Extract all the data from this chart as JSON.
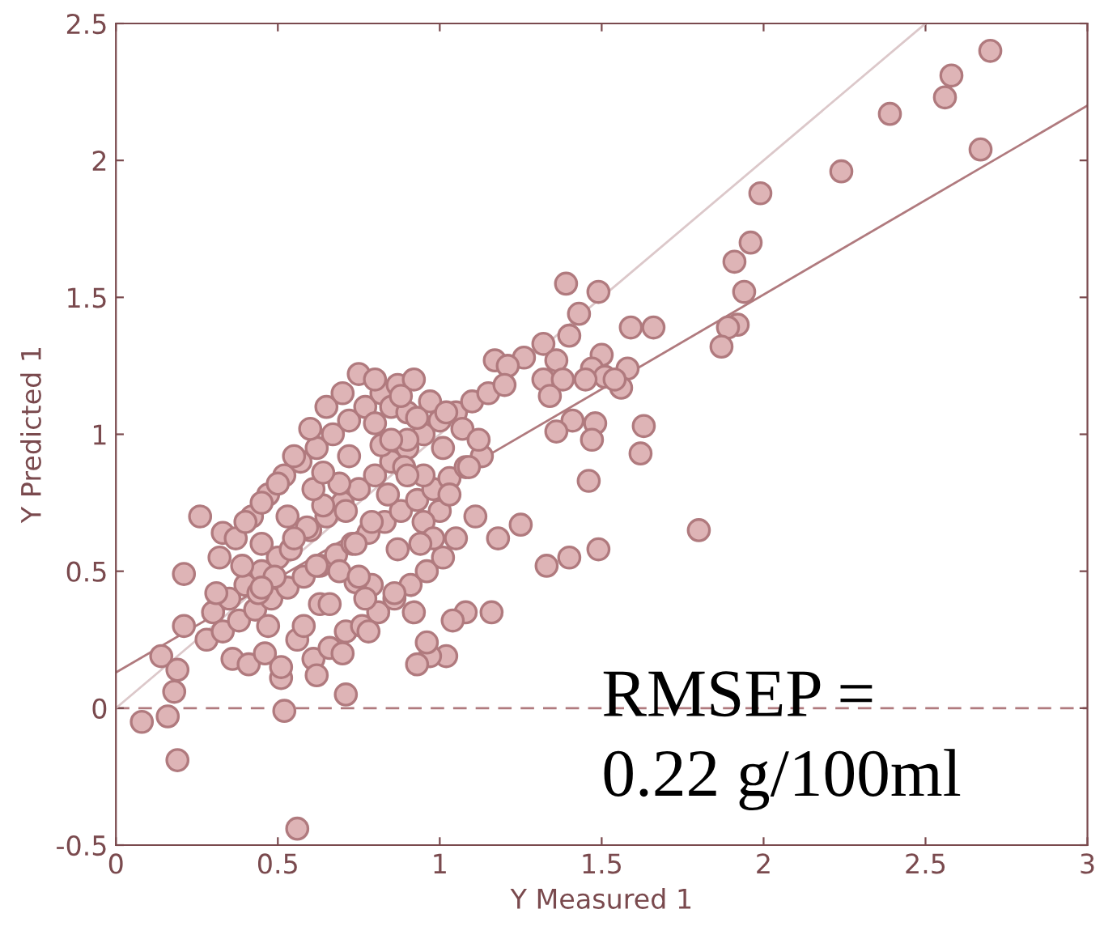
{
  "chart_data": {
    "type": "scatter",
    "xlabel": "Y Measured 1",
    "ylabel": "Y Predicted 1",
    "annotations": [
      "RMSEP =\n0.22 g/100ml"
    ],
    "xlim": [
      0,
      3
    ],
    "ylim": [
      -0.5,
      2.5
    ],
    "xticks": [
      0,
      0.5,
      1,
      1.5,
      2,
      2.5,
      3
    ],
    "yticks": [
      -0.5,
      0,
      0.5,
      1,
      1.5,
      2,
      2.5
    ],
    "grid": false,
    "marker": "circle",
    "ref_lines": [
      {
        "axis": "y",
        "value": 0,
        "color": "#b07a7e",
        "line_style": "dashed"
      }
    ],
    "series": [
      {
        "type": "line",
        "color": "#dcc8ca",
        "x": [
          0,
          2.5
        ],
        "values": [
          0,
          2.5
        ],
        "marker": "none"
      },
      {
        "type": "line",
        "color": "#b07a7e",
        "x": [
          0,
          3
        ],
        "values": [
          0.13,
          2.2
        ],
        "marker": "none"
      },
      {
        "color": "#deb4b6",
        "x": [
          2.7,
          2.58,
          2.56,
          2.39,
          2.24,
          2.67,
          1.99,
          1.96,
          1.91,
          1.94,
          1.92,
          1.89,
          1.87,
          1.39,
          1.49,
          1.43,
          1.4,
          1.66,
          1.59,
          1.32,
          1.36,
          1.58,
          1.56,
          1.5,
          1.47,
          1.26,
          1.17,
          1.21,
          1.32,
          1.38,
          1.51,
          1.45,
          1.54,
          1.34,
          1.41,
          1.48,
          1.36,
          1.47,
          1.62,
          1.63,
          1.8,
          1.46,
          1.49,
          1.4,
          1.33,
          1.18,
          1.25,
          1.16,
          1.08,
          0.92,
          1.02,
          0.97,
          0.93,
          0.14,
          0.08,
          0.16,
          0.19,
          0.18,
          0.19,
          0.52,
          0.56,
          0.71,
          0.51,
          0.26,
          0.21,
          0.21,
          0.33,
          0.3,
          0.35,
          0.4,
          0.45,
          0.5,
          0.6,
          0.65,
          0.7,
          0.75,
          0.8,
          0.85,
          0.9,
          0.95,
          1.0,
          1.05,
          1.1,
          1.15,
          1.2,
          0.28,
          0.33,
          0.38,
          0.43,
          0.48,
          0.53,
          0.58,
          0.63,
          0.68,
          0.73,
          0.78,
          0.83,
          0.88,
          0.93,
          0.98,
          1.03,
          1.08,
          1.13,
          0.32,
          0.37,
          0.42,
          0.47,
          0.52,
          0.57,
          0.62,
          0.67,
          0.72,
          0.77,
          0.82,
          0.87,
          0.92,
          0.97,
          1.02,
          1.07,
          1.12,
          0.36,
          0.41,
          0.46,
          0.51,
          0.56,
          0.61,
          0.66,
          0.71,
          0.76,
          0.81,
          0.86,
          0.91,
          0.96,
          1.01,
          0.4,
          0.45,
          0.5,
          0.55,
          0.6,
          0.65,
          0.7,
          0.75,
          0.8,
          0.85,
          0.9,
          0.95,
          1.0,
          1.05,
          0.44,
          0.49,
          0.54,
          0.59,
          0.64,
          0.69,
          0.74,
          0.79,
          0.84,
          0.89,
          0.31,
          0.39,
          0.47,
          0.55,
          0.63,
          0.71,
          0.79,
          0.87,
          0.95,
          1.03,
          1.11,
          0.58,
          0.66,
          0.74,
          0.82,
          0.9,
          0.98,
          0.62,
          0.7,
          0.78,
          0.86,
          0.94,
          0.45,
          0.53,
          0.61,
          0.69,
          0.77,
          0.85,
          0.93,
          1.01,
          1.09,
          0.64,
          0.72,
          0.8,
          0.88,
          0.96,
          1.04,
          0.45,
          0.62,
          0.75,
          0.9
        ],
        "values": [
          2.4,
          2.31,
          2.23,
          2.17,
          1.96,
          2.04,
          1.88,
          1.7,
          1.63,
          1.52,
          1.4,
          1.39,
          1.32,
          1.55,
          1.52,
          1.44,
          1.36,
          1.39,
          1.39,
          1.33,
          1.27,
          1.24,
          1.17,
          1.29,
          1.24,
          1.28,
          1.27,
          1.25,
          1.2,
          1.2,
          1.21,
          1.2,
          1.2,
          1.14,
          1.05,
          1.04,
          1.01,
          0.98,
          0.93,
          1.03,
          0.65,
          0.83,
          0.58,
          0.55,
          0.52,
          0.62,
          0.67,
          0.35,
          0.35,
          0.35,
          0.19,
          0.19,
          0.16,
          0.19,
          -0.05,
          -0.03,
          0.14,
          0.06,
          -0.19,
          -0.01,
          -0.44,
          0.05,
          0.11,
          0.7,
          0.49,
          0.3,
          0.64,
          0.35,
          0.4,
          0.45,
          0.5,
          0.55,
          0.65,
          0.7,
          0.75,
          0.8,
          0.85,
          0.9,
          0.95,
          1.0,
          1.05,
          1.08,
          1.12,
          1.15,
          1.18,
          0.25,
          0.28,
          0.32,
          0.36,
          0.4,
          0.44,
          0.48,
          0.52,
          0.56,
          0.6,
          0.64,
          0.68,
          0.72,
          0.76,
          0.8,
          0.84,
          0.88,
          0.92,
          0.55,
          0.62,
          0.7,
          0.78,
          0.85,
          0.9,
          0.95,
          1.0,
          1.05,
          1.1,
          1.15,
          1.18,
          1.2,
          1.12,
          1.08,
          1.02,
          0.98,
          0.18,
          0.16,
          0.2,
          0.15,
          0.25,
          0.18,
          0.22,
          0.28,
          0.3,
          0.35,
          0.4,
          0.45,
          0.5,
          0.55,
          0.68,
          0.75,
          0.82,
          0.92,
          1.02,
          1.1,
          1.15,
          1.22,
          1.2,
          1.1,
          0.98,
          0.85,
          0.72,
          0.62,
          0.42,
          0.48,
          0.58,
          0.66,
          0.74,
          0.82,
          0.6,
          0.68,
          0.78,
          0.88,
          0.42,
          0.52,
          0.3,
          0.62,
          0.38,
          0.72,
          0.45,
          0.58,
          0.68,
          0.78,
          0.7,
          0.3,
          0.38,
          0.46,
          0.96,
          1.08,
          0.62,
          0.12,
          0.2,
          0.28,
          0.42,
          0.6,
          0.6,
          0.7,
          0.8,
          0.5,
          0.4,
          0.98,
          1.06,
          0.95,
          0.88,
          0.86,
          0.92,
          1.04,
          1.14,
          0.24,
          0.32,
          0.44,
          0.52,
          0.48,
          0.85
        ]
      }
    ]
  }
}
